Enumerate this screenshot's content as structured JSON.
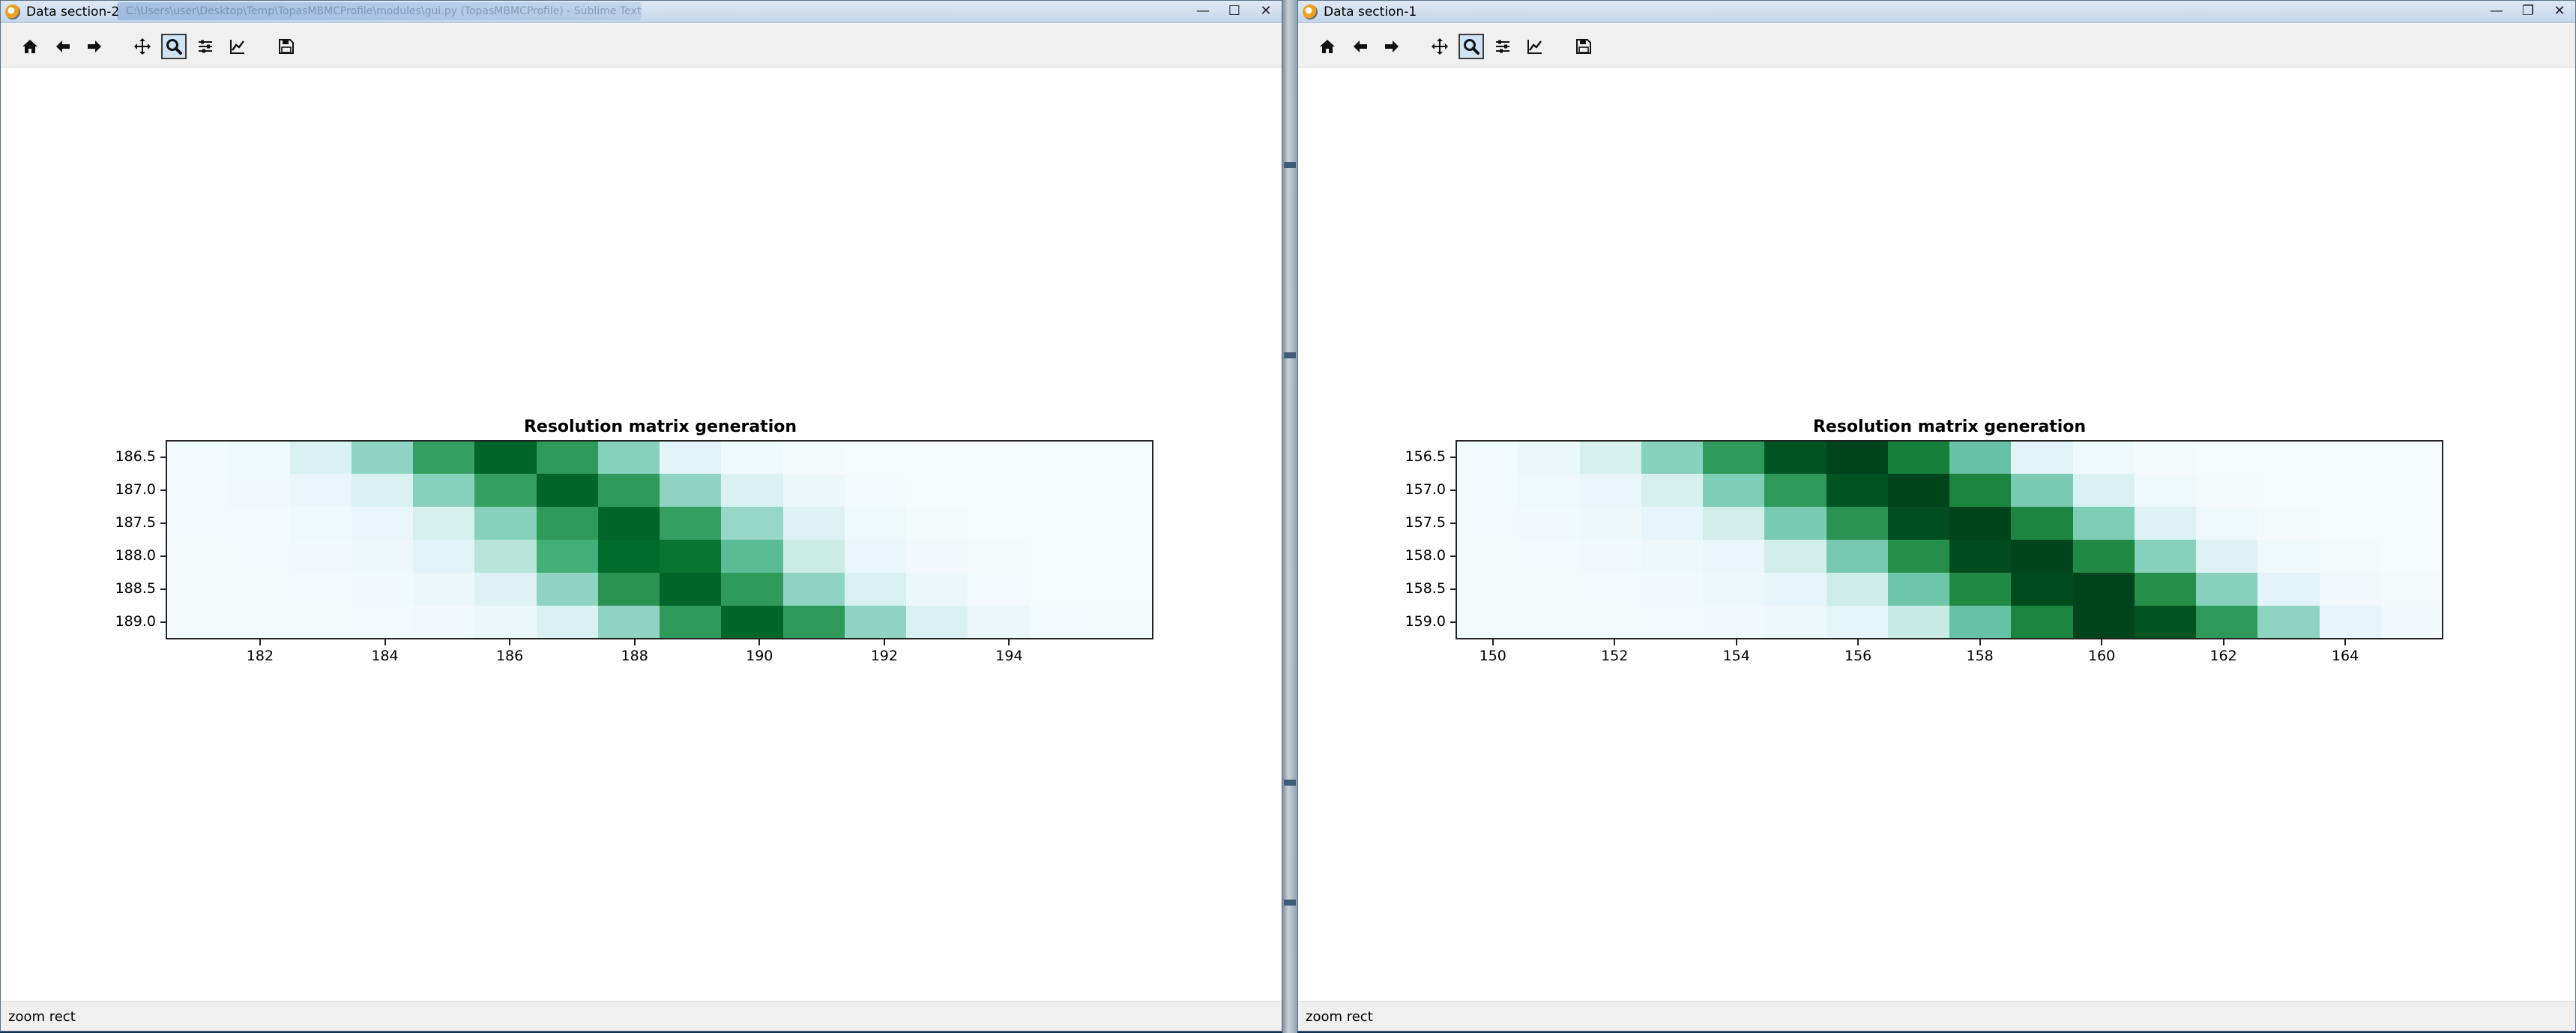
{
  "windows": [
    {
      "id": "left",
      "title": "Data section-2",
      "background_title": "C:\\Users\\user\\Desktop\\Temp\\TopasMBMCProfile\\modules\\gui.py (TopasMBMCProfile) - Sublime Text",
      "status": "zoom rect",
      "controls": {
        "minimize": "—",
        "maximize": "☐",
        "close": "✕"
      }
    },
    {
      "id": "right",
      "title": "Data section-1",
      "background_title": "",
      "status": "zoom rect",
      "controls": {
        "minimize": "—",
        "maximize": "❐",
        "close": "✕"
      }
    }
  ],
  "toolbar": {
    "buttons": [
      {
        "name": "home-icon",
        "tooltip": "Home"
      },
      {
        "name": "back-arrow-icon",
        "tooltip": "Back"
      },
      {
        "name": "forward-arrow-icon",
        "tooltip": "Forward"
      },
      {
        "name": "pan-icon",
        "tooltip": "Pan"
      },
      {
        "name": "zoom-icon",
        "tooltip": "Zoom",
        "active": true
      },
      {
        "name": "configure-subplots-icon",
        "tooltip": "Subplots"
      },
      {
        "name": "edit-axis-icon",
        "tooltip": "Customize"
      },
      {
        "name": "save-icon",
        "tooltip": "Save"
      }
    ]
  },
  "chart_data": [
    {
      "type": "heatmap",
      "title": "Resolution matrix generation",
      "colormap": "Greens",
      "x_range": [
        180.5,
        196.3
      ],
      "y_range": [
        186.25,
        189.25
      ],
      "x_ticks": [
        182,
        184,
        186,
        188,
        190,
        192,
        194
      ],
      "y_ticks": [
        186.5,
        187.0,
        187.5,
        188.0,
        188.5,
        189.0
      ],
      "x_tick_labels": [
        "182",
        "184",
        "186",
        "188",
        "190",
        "192",
        "194"
      ],
      "y_tick_labels": [
        "186.5",
        "187.0",
        "187.5",
        "188.0",
        "188.5",
        "189.0"
      ],
      "x_centers": [
        181.0,
        182.0,
        183.0,
        184.0,
        185.0,
        186.0,
        187.0,
        188.0,
        189.0,
        190.0,
        191.0,
        192.0,
        193.0,
        194.0,
        195.0,
        196.0
      ],
      "y_centers": [
        186.5,
        187.0,
        187.5,
        188.0,
        188.5,
        189.0
      ],
      "values": [
        [
          0.04,
          0.06,
          0.18,
          0.4,
          0.68,
          0.9,
          0.7,
          0.42,
          0.14,
          0.06,
          0.03,
          0.02,
          0.01,
          0.01,
          0.02,
          0.02
        ],
        [
          0.04,
          0.05,
          0.09,
          0.18,
          0.42,
          0.68,
          0.9,
          0.7,
          0.4,
          0.18,
          0.08,
          0.04,
          0.02,
          0.02,
          0.02,
          0.02
        ],
        [
          0.04,
          0.04,
          0.06,
          0.1,
          0.2,
          0.42,
          0.7,
          0.9,
          0.68,
          0.38,
          0.16,
          0.06,
          0.03,
          0.02,
          0.02,
          0.02
        ],
        [
          0.03,
          0.04,
          0.05,
          0.07,
          0.14,
          0.3,
          0.62,
          0.88,
          0.84,
          0.54,
          0.25,
          0.1,
          0.05,
          0.03,
          0.02,
          0.02
        ],
        [
          0.03,
          0.03,
          0.04,
          0.05,
          0.08,
          0.16,
          0.4,
          0.72,
          0.9,
          0.7,
          0.4,
          0.18,
          0.08,
          0.04,
          0.02,
          0.02
        ],
        [
          0.03,
          0.03,
          0.03,
          0.04,
          0.05,
          0.08,
          0.18,
          0.4,
          0.7,
          0.9,
          0.7,
          0.4,
          0.18,
          0.08,
          0.04,
          0.03
        ]
      ]
    },
    {
      "type": "heatmap",
      "title": "Resolution matrix generation",
      "colormap": "Greens",
      "x_range": [
        149.4,
        165.6
      ],
      "y_range": [
        156.25,
        159.25
      ],
      "x_ticks": [
        150,
        152,
        154,
        156,
        158,
        160,
        162,
        164
      ],
      "y_ticks": [
        156.5,
        157.0,
        157.5,
        158.0,
        158.5,
        159.0
      ],
      "x_tick_labels": [
        "150",
        "152",
        "154",
        "156",
        "158",
        "160",
        "162",
        "164"
      ],
      "y_tick_labels": [
        "156.5",
        "157.0",
        "157.5",
        "158.0",
        "158.5",
        "159.0"
      ],
      "x_centers": [
        149.9,
        150.9,
        151.9,
        152.9,
        153.9,
        154.9,
        155.9,
        156.9,
        157.9,
        158.9,
        159.9,
        160.9,
        161.9,
        162.9,
        163.9,
        164.9
      ],
      "y_centers": [
        156.5,
        157.0,
        157.5,
        158.0,
        158.5,
        159.0
      ],
      "values": [
        [
          0.04,
          0.08,
          0.2,
          0.42,
          0.7,
          0.95,
          1.0,
          0.8,
          0.5,
          0.14,
          0.06,
          0.03,
          0.02,
          0.02,
          0.02,
          0.02
        ],
        [
          0.04,
          0.06,
          0.1,
          0.2,
          0.44,
          0.7,
          0.95,
          1.0,
          0.78,
          0.45,
          0.18,
          0.06,
          0.03,
          0.02,
          0.02,
          0.02
        ],
        [
          0.04,
          0.05,
          0.07,
          0.12,
          0.22,
          0.45,
          0.72,
          0.97,
          1.0,
          0.78,
          0.44,
          0.16,
          0.06,
          0.03,
          0.02,
          0.02
        ],
        [
          0.03,
          0.04,
          0.05,
          0.07,
          0.1,
          0.22,
          0.46,
          0.74,
          0.98,
          1.0,
          0.76,
          0.42,
          0.16,
          0.06,
          0.03,
          0.02
        ],
        [
          0.03,
          0.03,
          0.04,
          0.05,
          0.07,
          0.12,
          0.24,
          0.48,
          0.76,
          0.98,
          1.0,
          0.74,
          0.42,
          0.14,
          0.05,
          0.03
        ],
        [
          0.03,
          0.03,
          0.03,
          0.04,
          0.05,
          0.07,
          0.13,
          0.26,
          0.5,
          0.78,
          1.0,
          0.95,
          0.7,
          0.4,
          0.12,
          0.05
        ]
      ]
    }
  ]
}
